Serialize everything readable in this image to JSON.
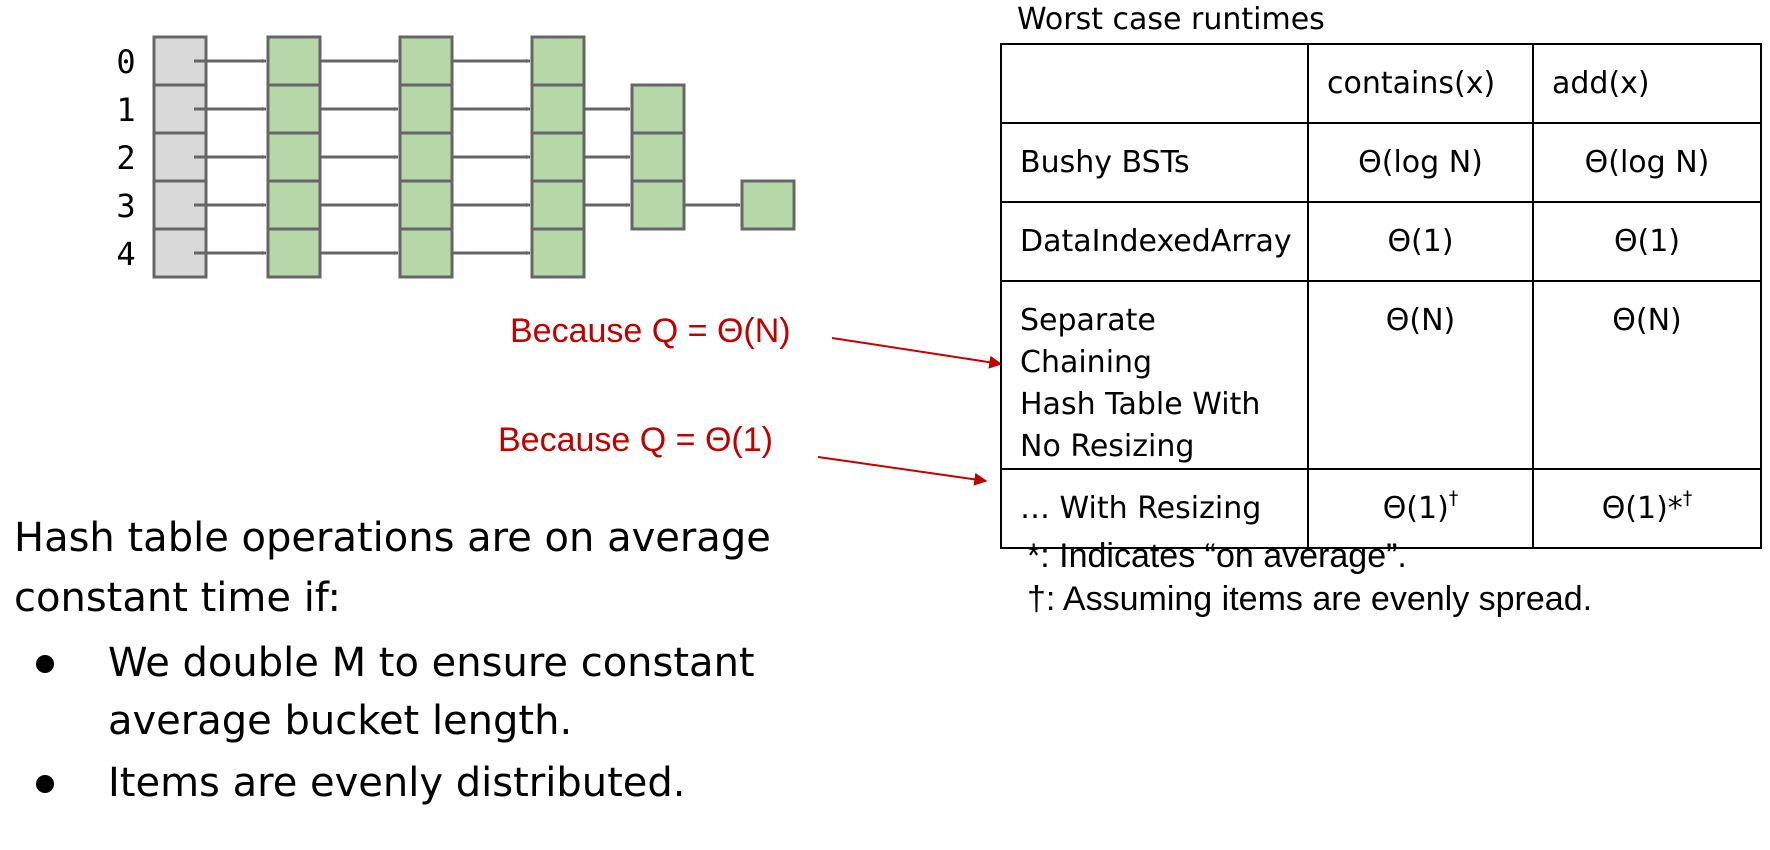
{
  "diagram": {
    "bucket_indices": [
      "0",
      "1",
      "2",
      "3",
      "4"
    ],
    "chain_lengths": [
      3,
      4,
      4,
      5,
      3
    ]
  },
  "annotations": {
    "because_n": "Because Q = Θ(N)",
    "because_1": "Because Q = Θ(1)"
  },
  "table": {
    "caption": "Worst case runtimes",
    "headers": [
      "",
      "contains(x)",
      "add(x)"
    ],
    "rows": [
      {
        "label": "Bushy BSTs",
        "contains": "Θ(log N)",
        "add": "Θ(log N)"
      },
      {
        "label": "DataIndexedArray",
        "contains": "Θ(1)",
        "add": "Θ(1)"
      },
      {
        "label": "Separate Chaining Hash Table With No Resizing",
        "label_lines": [
          "Separate Chaining",
          "Hash Table With",
          "No Resizing"
        ],
        "contains": "Θ(N)",
        "add": "Θ(N)"
      },
      {
        "label": "… With Resizing",
        "contains": "Θ(1)",
        "contains_sup": "†",
        "add": "Θ(1)*",
        "add_sup": "†"
      }
    ]
  },
  "notes": [
    "*: Indicates “on average”.",
    "†: Assuming items are evenly spread."
  ],
  "summary": {
    "intro_lines": [
      "Hash table operations are on average",
      "constant time if:"
    ],
    "bullets": [
      {
        "lines": [
          "We double M to ensure constant",
          "average bucket length."
        ]
      },
      {
        "lines": [
          "Items are evenly distributed."
        ]
      }
    ]
  },
  "colors": {
    "bucket_fill": "#d9d9d9",
    "node_fill": "#b6d7a8",
    "stroke": "#666666",
    "annotation_red": "#c00000"
  }
}
